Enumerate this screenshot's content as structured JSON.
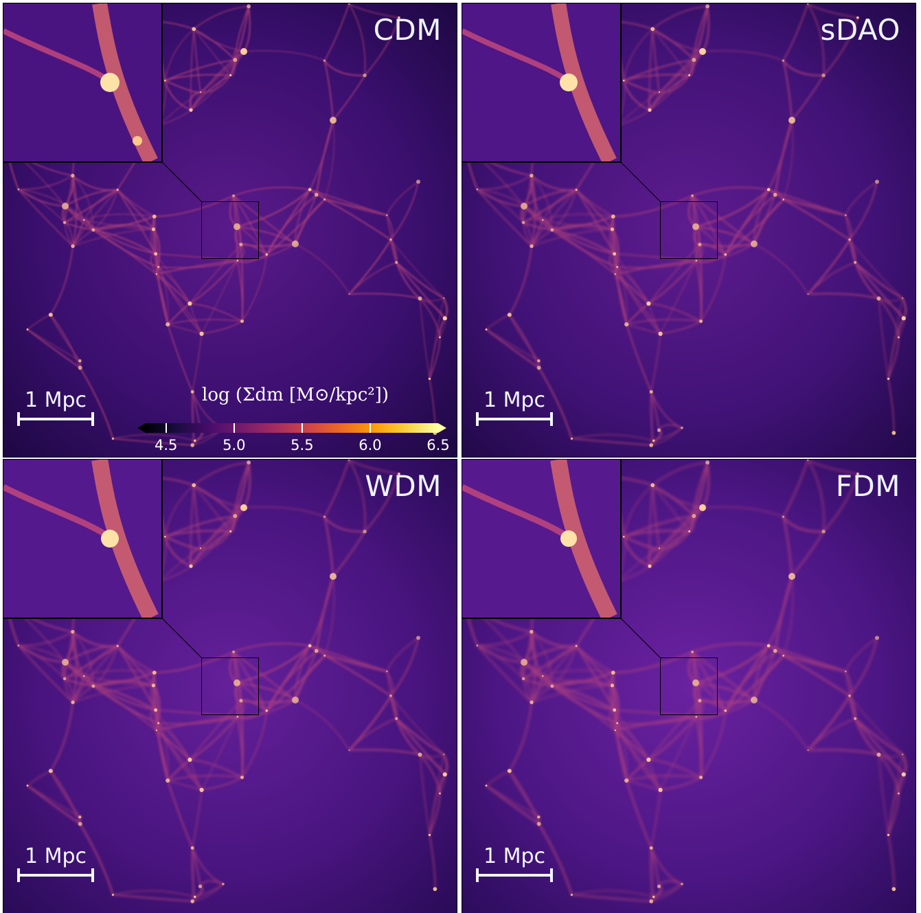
{
  "panels": [
    {
      "id": "cdm",
      "label": "CDM",
      "scale_label": "1 Mpc"
    },
    {
      "id": "sdao",
      "label": "sDAO",
      "scale_label": "1 Mpc"
    },
    {
      "id": "wdm",
      "label": "WDM",
      "scale_label": "1 Mpc"
    },
    {
      "id": "fdm",
      "label": "FDM",
      "scale_label": "1 Mpc"
    }
  ],
  "colorbar": {
    "title": "log (Σdm [M⊙/kpc²])",
    "ticks": [
      "4.5",
      "5.0",
      "5.5",
      "6.0",
      "6.5"
    ],
    "colormap": "magma",
    "range": [
      4.35,
      6.5
    ]
  },
  "colors": {
    "background": "#3d0c6a",
    "filament": "#d85a7a",
    "node": "#ffd9a0"
  }
}
